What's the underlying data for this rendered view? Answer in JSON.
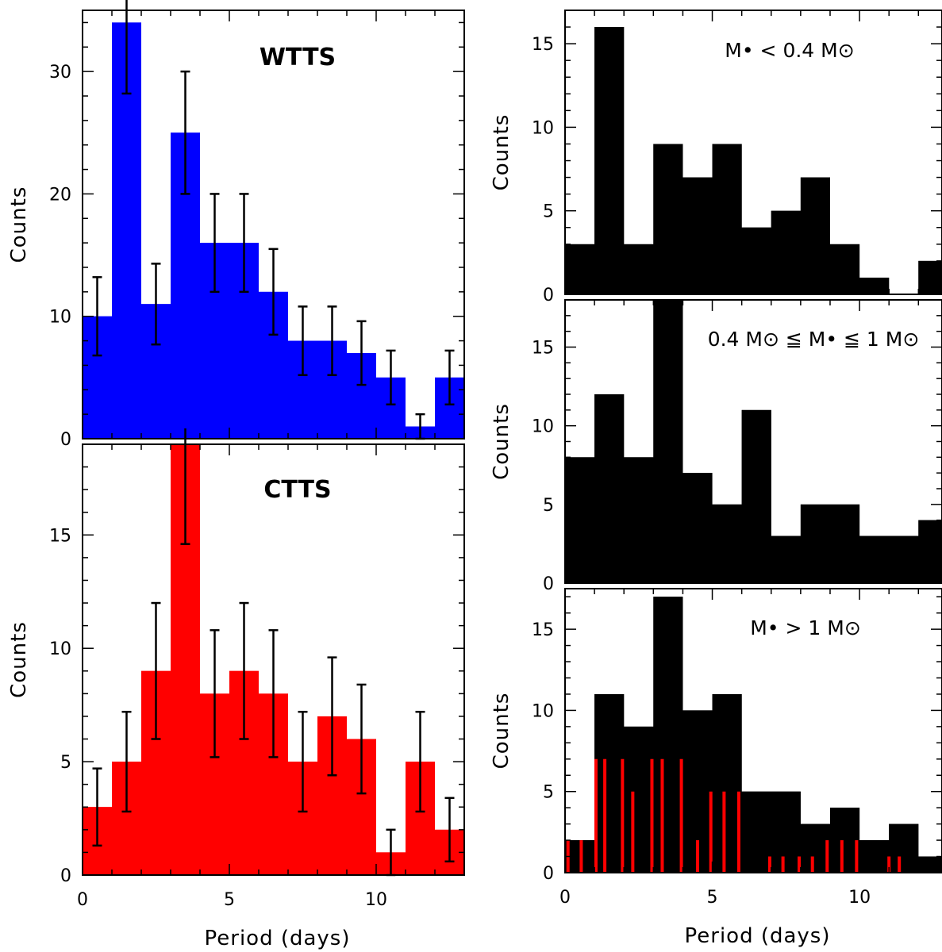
{
  "chart_data": [
    {
      "type": "bar",
      "panel": "top-left",
      "label": "WTTS",
      "color": "#0000ff",
      "xlabel": "",
      "ylabel": "Counts",
      "xlim": [
        0,
        13
      ],
      "ylim": [
        0,
        35
      ],
      "xticks": [],
      "yticks": [
        0,
        10,
        20,
        30
      ],
      "bin_width": 1,
      "x": [
        0.5,
        1.5,
        2.5,
        3.5,
        4.5,
        5.5,
        6.5,
        7.5,
        8.5,
        9.5,
        10.5,
        11.5,
        12.5
      ],
      "values": [
        10,
        34,
        11,
        25,
        16,
        16,
        12,
        8,
        8,
        7,
        5,
        1,
        5
      ],
      "errors": [
        3.2,
        5.8,
        3.3,
        5.0,
        4.0,
        4.0,
        3.5,
        2.8,
        2.8,
        2.6,
        2.2,
        1.0,
        2.2
      ],
      "error_color": "#000000"
    },
    {
      "type": "bar",
      "panel": "bottom-left",
      "label": "CTTS",
      "color": "#ff0000",
      "xlabel": "Period (days)",
      "ylabel": "Counts",
      "xlim": [
        0,
        13
      ],
      "ylim": [
        0,
        19
      ],
      "xticks": [
        0,
        5,
        10
      ],
      "yticks": [
        0,
        5,
        10,
        15
      ],
      "bin_width": 1,
      "x": [
        0.5,
        1.5,
        2.5,
        3.5,
        4.5,
        5.5,
        6.5,
        7.5,
        8.5,
        9.5,
        10.5,
        11.5,
        12.5
      ],
      "values": [
        3,
        5,
        9,
        19,
        8,
        9,
        8,
        5,
        7,
        6,
        1,
        5,
        2
      ],
      "errors": [
        1.7,
        2.2,
        3.0,
        4.4,
        2.8,
        3.0,
        2.8,
        2.2,
        2.6,
        2.4,
        1.0,
        2.2,
        1.4
      ],
      "error_color": "#000000"
    },
    {
      "type": "bar",
      "panel": "top-right",
      "label": "M• < 0.4 M⊙",
      "color": "#000000",
      "xlabel": "",
      "ylabel": "Counts",
      "xlim": [
        0,
        12.8
      ],
      "ylim": [
        0,
        17
      ],
      "xticks": [],
      "yticks": [
        0,
        5,
        10,
        15
      ],
      "bin_width": 1,
      "x": [
        0.5,
        1.5,
        2.5,
        3.5,
        4.5,
        5.5,
        6.5,
        7.5,
        8.5,
        9.5,
        10.5,
        11.5,
        12.5
      ],
      "values": [
        3,
        16,
        3,
        9,
        7,
        9,
        4,
        5,
        7,
        3,
        1,
        0,
        2
      ]
    },
    {
      "type": "bar",
      "panel": "middle-right",
      "label": "0.4 M⊙ ≦ M• ≦ 1 M⊙",
      "color": "#000000",
      "xlabel": "",
      "ylabel": "Counts",
      "xlim": [
        0,
        12.8
      ],
      "ylim": [
        0,
        18
      ],
      "xticks": [],
      "yticks": [
        0,
        5,
        10,
        15
      ],
      "bin_width": 1,
      "x": [
        0.5,
        1.5,
        2.5,
        3.5,
        4.5,
        5.5,
        6.5,
        7.5,
        8.5,
        9.5,
        10.5,
        11.5,
        12.5
      ],
      "values": [
        8,
        12,
        8,
        18,
        7,
        5,
        11,
        3,
        5,
        5,
        3,
        3,
        4
      ]
    },
    {
      "type": "bar",
      "panel": "bottom-right",
      "label": "M• > 1 M⊙",
      "color": "#000000",
      "xlabel": "Period (days)",
      "ylabel": "Counts",
      "xlim": [
        0,
        12.8
      ],
      "ylim": [
        0,
        17.5
      ],
      "xticks": [
        0,
        5,
        10
      ],
      "yticks": [
        0,
        5,
        10,
        15
      ],
      "bin_width": 1,
      "x": [
        0.5,
        1.5,
        2.5,
        3.5,
        4.5,
        5.5,
        6.5,
        7.5,
        8.5,
        9.5,
        10.5,
        11.5,
        12.5
      ],
      "values": [
        2,
        11,
        9,
        17,
        10,
        11,
        5,
        5,
        3,
        4,
        2,
        3,
        1
      ],
      "overlay": {
        "type": "spikes",
        "color": "#ff0000",
        "x": [
          0.1,
          0.55,
          1.05,
          1.35,
          1.95,
          2.3,
          2.95,
          3.3,
          3.95,
          4.5,
          4.95,
          5.4,
          5.9,
          6.95,
          7.4,
          7.95,
          8.4,
          8.9,
          9.4,
          9.9,
          11.0,
          11.35
        ],
        "values": [
          2,
          2,
          7,
          7,
          7,
          5,
          7,
          7,
          7,
          2,
          5,
          5,
          5,
          1,
          1,
          1,
          1,
          2,
          2,
          2,
          1,
          1
        ]
      }
    }
  ]
}
